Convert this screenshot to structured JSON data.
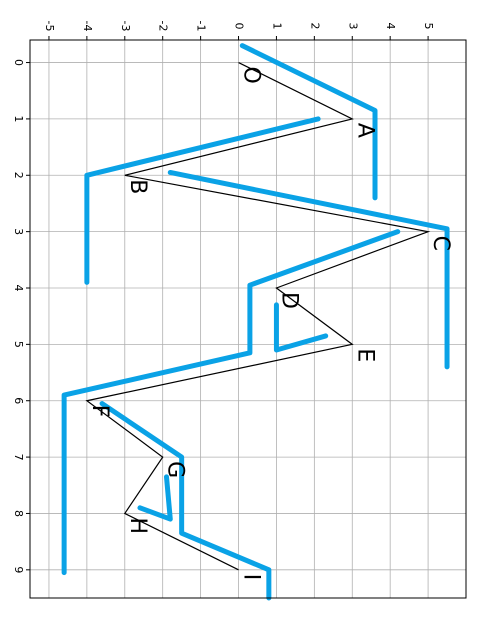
{
  "chart_data": {
    "type": "line",
    "title": "",
    "xlabel": "",
    "ylabel": "",
    "orientation": "rotated-90-clockwise",
    "grid": true,
    "xlim": [
      -0.4,
      9.5
    ],
    "ylim": [
      -5.5,
      6.0
    ],
    "x_ticks": [
      0,
      1,
      2,
      3,
      4,
      5,
      6,
      7,
      8,
      9
    ],
    "y_ticks": [
      -5,
      -4,
      -3,
      -2,
      -1,
      0,
      1,
      2,
      3,
      4,
      5
    ],
    "colors": {
      "reference_line": "#000000",
      "stroke": "#0aa2e6",
      "grid": "#b0b0b0"
    },
    "points": [
      {
        "label": "O",
        "x": 0,
        "y": 0
      },
      {
        "label": "A",
        "x": 1,
        "y": 3
      },
      {
        "label": "B",
        "x": 2,
        "y": -3
      },
      {
        "label": "C",
        "x": 3,
        "y": 5
      },
      {
        "label": "D",
        "x": 4,
        "y": 1
      },
      {
        "label": "E",
        "x": 5,
        "y": 3
      },
      {
        "label": "F",
        "x": 6,
        "y": -4
      },
      {
        "label": "G",
        "x": 7,
        "y": -2
      },
      {
        "label": "H",
        "x": 8,
        "y": -3
      },
      {
        "label": "I",
        "x": 9,
        "y": 0
      }
    ],
    "strokes": [
      [
        [
          -0.3,
          0.1
        ],
        [
          0.85,
          3.6
        ],
        [
          2.4,
          3.6
        ]
      ],
      [
        [
          1.0,
          2.1
        ],
        [
          2.0,
          -4.0
        ],
        [
          3.9,
          -4.0
        ]
      ],
      [
        [
          1.95,
          -1.8
        ],
        [
          2.95,
          5.5
        ],
        [
          5.4,
          5.5
        ]
      ],
      [
        [
          3.0,
          4.2
        ],
        [
          3.95,
          0.3
        ],
        [
          5.15,
          0.3
        ],
        [
          5.9,
          -4.6
        ],
        [
          9.05,
          -4.6
        ]
      ],
      [
        [
          4.3,
          1.0
        ],
        [
          5.1,
          1.0
        ],
        [
          4.85,
          2.3
        ]
      ],
      [
        [
          6.05,
          -3.6
        ],
        [
          7.0,
          -1.5
        ],
        [
          8.35,
          -1.5
        ],
        [
          9.0,
          0.8
        ],
        [
          9.5,
          0.8
        ]
      ],
      [
        [
          7.35,
          -1.9
        ],
        [
          8.1,
          -1.8
        ],
        [
          7.9,
          -2.6
        ]
      ]
    ]
  }
}
